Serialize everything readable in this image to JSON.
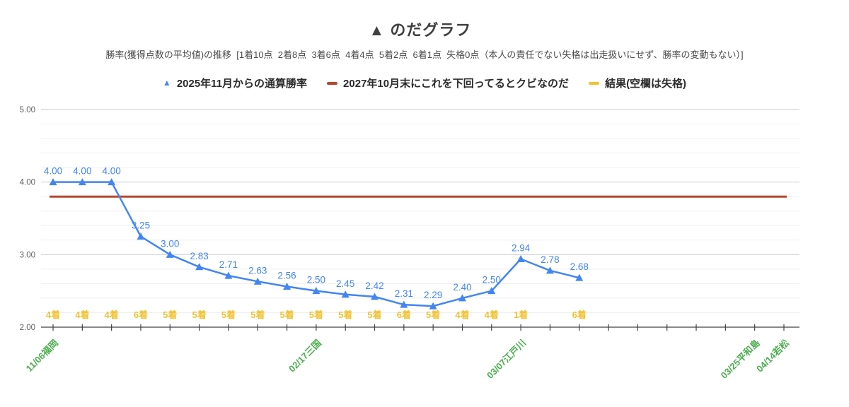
{
  "title": "▲ のだグラフ",
  "subtitle": "勝率(獲得点数の平均値)の推移  [1着10点  2着8点  3着6点  4着4点  5着2点  6着1点  失格0点（本人の責任でない失格は出走扱いにせず、勝率の変動もない）]",
  "legend": [
    {
      "label": "2025年11月からの通算勝率",
      "marker": "triangle",
      "color": "#4285f4"
    },
    {
      "label": "2027年10月末にこれを下回ってるとクビなのだ",
      "marker": "dash",
      "color": "#b5472e"
    },
    {
      "label": "結果(空欄は失格)",
      "marker": "dash",
      "color": "#f1c232"
    }
  ],
  "chart_data": {
    "type": "line",
    "title": "▲ のだグラフ",
    "grid": "on",
    "legend_position": "top",
    "y_axis": {
      "min": 2.0,
      "max": 5.0,
      "major_step": 1.0,
      "minor_step": 0.2,
      "tick_labels": [
        "5.00",
        "4.00",
        "3.00",
        "2.00"
      ]
    },
    "num_slots": 26,
    "series": [
      {
        "name": "2025年11月からの通算勝率",
        "type": "line-with-triangle-markers",
        "color": "#4285f4",
        "values": [
          4.0,
          4.0,
          4.0,
          3.25,
          3.0,
          2.83,
          2.71,
          2.63,
          2.56,
          2.5,
          2.45,
          2.42,
          2.31,
          2.29,
          2.4,
          2.5,
          2.94,
          2.78,
          2.68
        ]
      },
      {
        "name": "2027年10月末にこれを下回ってるとクビなのだ",
        "type": "horizontal-threshold-line",
        "color": "#b5472e",
        "value": 3.8
      },
      {
        "name": "結果(空欄は失格)",
        "type": "category-text-labels",
        "color": "#f1c232",
        "labels": [
          "4着",
          "4着",
          "4着",
          "6着",
          "5着",
          "5着",
          "5着",
          "5着",
          "5着",
          "5着",
          "5着",
          "5着",
          "6着",
          "5着",
          "4着",
          "4着",
          "1着",
          "",
          "6着"
        ]
      }
    ],
    "x_labels": [
      {
        "index": 0,
        "label": "11/06福岡"
      },
      {
        "index": 9,
        "label": "02/17三国"
      },
      {
        "index": 16,
        "label": "03/07江戸川"
      },
      {
        "index": 24,
        "label": "03/25平和島"
      },
      {
        "index": 25,
        "label": "04/14若松"
      }
    ],
    "x_labels_color": "#4cae4f",
    "axis_colors": {
      "baseline": "#424242",
      "major_grid": "#d3d3d3",
      "minor_grid": "#efefef",
      "tick_label": "#5f5f5f"
    }
  }
}
